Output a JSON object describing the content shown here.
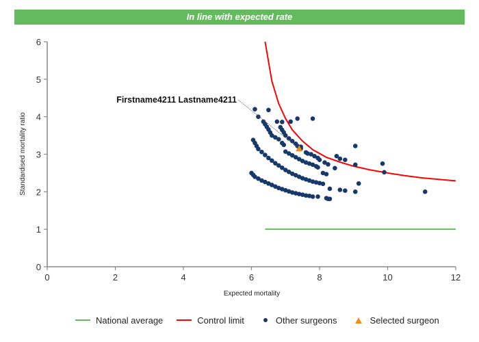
{
  "banner": {
    "text": "In line with expected rate",
    "color": "#63bb5e"
  },
  "chart_data": {
    "type": "scatter",
    "title": "In line with expected rate",
    "xlabel": "Expected mortality",
    "ylabel": "Standardised mortality ratio",
    "xlim": [
      0,
      12
    ],
    "ylim": [
      0,
      6
    ],
    "x_ticks": [
      "0",
      "2",
      "4",
      "6",
      "8",
      "10",
      "12"
    ],
    "y_ticks": [
      "0",
      "1",
      "2",
      "3",
      "4",
      "5",
      "6"
    ],
    "grid": false,
    "legend_position": "bottom",
    "colors": {
      "national_average": "#63bb5e",
      "control_limit": "#ff0000",
      "other_surgeons": "#17386b",
      "selected_surgeon": "#f28c1a"
    },
    "national_average": {
      "name": "National average",
      "x": [
        6.4,
        12
      ],
      "y": [
        1,
        1
      ]
    },
    "control_limit": {
      "name": "Control limit",
      "x": [
        6.4,
        6.6,
        6.8,
        7.0,
        7.2,
        7.5,
        7.8,
        8.2,
        8.6,
        9.0,
        9.5,
        10.0,
        10.5,
        11.0,
        11.5,
        12.0
      ],
      "y": [
        6.0,
        4.95,
        4.35,
        3.95,
        3.65,
        3.35,
        3.12,
        2.92,
        2.79,
        2.68,
        2.58,
        2.5,
        2.43,
        2.37,
        2.33,
        2.29
      ]
    },
    "other_surgeons": {
      "name": "Other surgeons",
      "points": [
        [
          6.1,
          4.2
        ],
        [
          6.5,
          4.18
        ],
        [
          6.2,
          4.0
        ],
        [
          6.75,
          3.87
        ],
        [
          6.9,
          3.86
        ],
        [
          7.15,
          3.87
        ],
        [
          7.35,
          3.95
        ],
        [
          7.8,
          3.95
        ],
        [
          6.35,
          3.87
        ],
        [
          6.4,
          3.8
        ],
        [
          6.45,
          3.73
        ],
        [
          6.5,
          3.66
        ],
        [
          6.55,
          3.58
        ],
        [
          6.6,
          3.5
        ],
        [
          6.7,
          3.45
        ],
        [
          6.8,
          3.4
        ],
        [
          6.85,
          3.72
        ],
        [
          6.9,
          3.65
        ],
        [
          6.95,
          3.58
        ],
        [
          7.0,
          3.5
        ],
        [
          7.1,
          3.42
        ],
        [
          7.2,
          3.35
        ],
        [
          7.3,
          3.28
        ],
        [
          7.45,
          3.2
        ],
        [
          7.6,
          3.05
        ],
        [
          7.65,
          3.02
        ],
        [
          7.35,
          3.22
        ],
        [
          7.45,
          3.15
        ],
        [
          6.9,
          3.3
        ],
        [
          6.95,
          3.25
        ],
        [
          7.0,
          3.07
        ],
        [
          7.1,
          3.02
        ],
        [
          7.2,
          2.97
        ],
        [
          7.3,
          2.92
        ],
        [
          7.4,
          2.87
        ],
        [
          7.5,
          2.82
        ],
        [
          7.6,
          2.78
        ],
        [
          7.7,
          2.75
        ],
        [
          7.8,
          2.72
        ],
        [
          7.9,
          2.68
        ],
        [
          7.95,
          2.65
        ],
        [
          7.75,
          3.0
        ],
        [
          7.85,
          2.95
        ],
        [
          7.95,
          2.9
        ],
        [
          8.0,
          2.85
        ],
        [
          8.15,
          2.78
        ],
        [
          8.25,
          2.73
        ],
        [
          8.5,
          2.95
        ],
        [
          8.6,
          2.88
        ],
        [
          8.75,
          2.85
        ],
        [
          9.05,
          2.72
        ],
        [
          9.05,
          3.22
        ],
        [
          8.45,
          2.63
        ],
        [
          8.1,
          2.5
        ],
        [
          8.2,
          2.47
        ],
        [
          6.05,
          3.38
        ],
        [
          6.1,
          3.3
        ],
        [
          6.15,
          3.22
        ],
        [
          6.2,
          3.14
        ],
        [
          6.3,
          3.06
        ],
        [
          6.4,
          2.98
        ],
        [
          6.5,
          2.9
        ],
        [
          6.6,
          2.83
        ],
        [
          6.7,
          2.76
        ],
        [
          6.8,
          2.7
        ],
        [
          6.9,
          2.64
        ],
        [
          7.0,
          2.58
        ],
        [
          7.1,
          2.53
        ],
        [
          7.2,
          2.48
        ],
        [
          7.3,
          2.44
        ],
        [
          7.4,
          2.4
        ],
        [
          7.5,
          2.36
        ],
        [
          7.6,
          2.33
        ],
        [
          7.7,
          2.3
        ],
        [
          7.8,
          2.27
        ],
        [
          7.9,
          2.25
        ],
        [
          8.0,
          2.23
        ],
        [
          8.1,
          2.21
        ],
        [
          8.3,
          2.08
        ],
        [
          8.6,
          2.05
        ],
        [
          8.75,
          2.03
        ],
        [
          9.05,
          2.0
        ],
        [
          9.15,
          2.22
        ],
        [
          6.0,
          2.5
        ],
        [
          6.05,
          2.45
        ],
        [
          6.1,
          2.4
        ],
        [
          6.2,
          2.35
        ],
        [
          6.3,
          2.3
        ],
        [
          6.4,
          2.26
        ],
        [
          6.5,
          2.22
        ],
        [
          6.6,
          2.18
        ],
        [
          6.7,
          2.14
        ],
        [
          6.8,
          2.1
        ],
        [
          6.9,
          2.07
        ],
        [
          7.0,
          2.04
        ],
        [
          7.1,
          2.01
        ],
        [
          7.2,
          1.98
        ],
        [
          7.3,
          1.96
        ],
        [
          7.4,
          1.94
        ],
        [
          7.5,
          1.92
        ],
        [
          7.6,
          1.9
        ],
        [
          7.7,
          1.89
        ],
        [
          7.8,
          1.87
        ],
        [
          7.95,
          1.87
        ],
        [
          8.2,
          1.83
        ],
        [
          8.25,
          1.81
        ],
        [
          8.3,
          1.81
        ],
        [
          9.85,
          2.75
        ],
        [
          9.9,
          2.52
        ],
        [
          11.1,
          2.0
        ]
      ]
    },
    "selected_surgeon": {
      "name": "Selected surgeon",
      "x": 7.4,
      "y": 3.15,
      "label": "Firstname4211 Lastname4211"
    }
  },
  "legend": {
    "items": [
      {
        "label": "National average"
      },
      {
        "label": "Control limit"
      },
      {
        "label": "Other surgeons"
      },
      {
        "label": "Selected surgeon"
      }
    ]
  }
}
